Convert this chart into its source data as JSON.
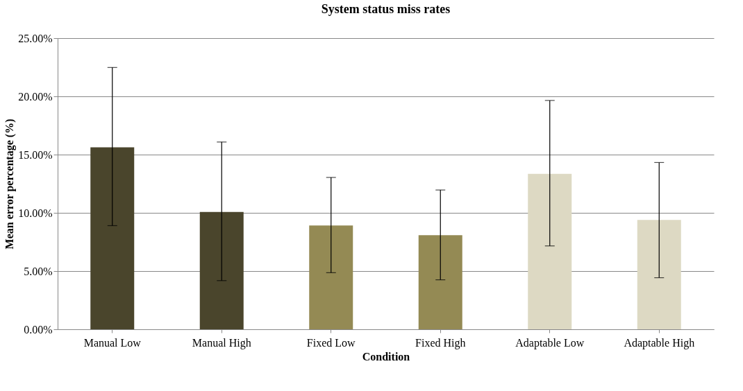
{
  "chart_data": {
    "type": "bar",
    "title": "System status miss rates",
    "xlabel": "Condition",
    "ylabel": "Mean error percentage (%)",
    "categories": [
      "Manual Low",
      "Manual High",
      "Fixed Low",
      "Fixed High",
      "Adaptable Low",
      "Adaptable High"
    ],
    "values": [
      15.63,
      10.07,
      8.92,
      8.08,
      13.35,
      9.39
    ],
    "colors": [
      "#4a452c",
      "#4a452c",
      "#948a54",
      "#948a54",
      "#ddd9c3",
      "#ddd9c3"
    ],
    "errors": [
      [
        8.9,
        22.48
      ],
      [
        4.18,
        16.08
      ],
      [
        4.86,
        13.04
      ],
      [
        4.25,
        11.96
      ],
      [
        7.16,
        19.65
      ],
      [
        4.43,
        14.32
      ]
    ],
    "ylim": [
      0,
      25
    ],
    "yticks": [
      {
        "value": 0,
        "label": "0.00%"
      },
      {
        "value": 5,
        "label": "5.00%"
      },
      {
        "value": 10,
        "label": "10.00%"
      },
      {
        "value": 15,
        "label": "15.00%"
      },
      {
        "value": 20,
        "label": "20.00%"
      },
      {
        "value": 25,
        "label": "25.00%"
      }
    ],
    "grid": "y"
  }
}
